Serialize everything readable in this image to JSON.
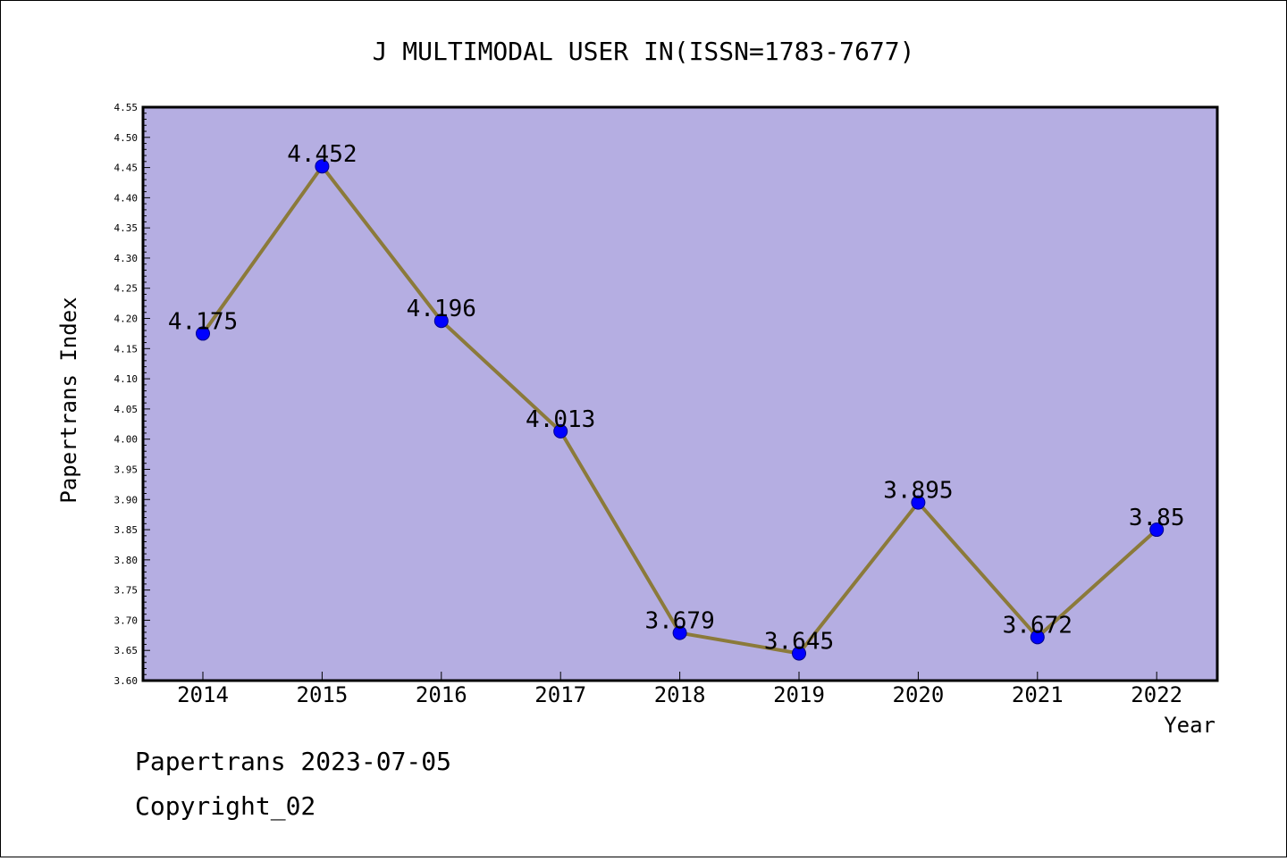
{
  "chart_data": {
    "type": "line",
    "title": "J MULTIMODAL USER IN(ISSN=1783-7677)",
    "xlabel": "Year",
    "ylabel": "Papertrans Index",
    "categories": [
      "2014",
      "2015",
      "2016",
      "2017",
      "2018",
      "2019",
      "2020",
      "2021",
      "2022"
    ],
    "values": [
      4.175,
      4.452,
      4.196,
      4.013,
      3.679,
      3.645,
      3.895,
      3.672,
      3.85
    ],
    "data_labels": [
      "4.175",
      "4.452",
      "4.196",
      "4.013",
      "3.679",
      "3.645",
      "3.895",
      "3.672",
      "3.85"
    ],
    "ylim": [
      3.6,
      4.55
    ],
    "yticks": [
      "3.60",
      "3.65",
      "3.70",
      "3.75",
      "3.80",
      "3.85",
      "3.90",
      "3.95",
      "4.00",
      "4.05",
      "4.10",
      "4.15",
      "4.20",
      "4.25",
      "4.30",
      "4.35",
      "4.40",
      "4.45",
      "4.50",
      "4.55"
    ],
    "grid": false,
    "legend": "none",
    "colors": {
      "plot_background": "#b5aee2",
      "line": "#8b7a3a",
      "marker": "#0000ff"
    }
  },
  "footer": {
    "line1": "Papertrans 2023-07-05",
    "line2": "Copyright_02"
  }
}
